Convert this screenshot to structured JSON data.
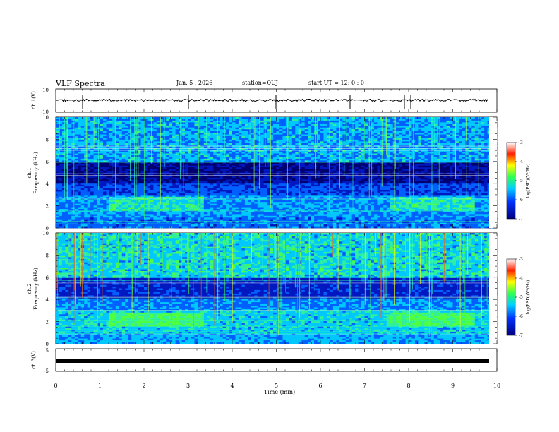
{
  "chart_data": {
    "type": "heatmap",
    "title": "VLF Spectra",
    "date": "Jan. 5 , 2026",
    "station": "station=OUJ",
    "start_ut": "start UT =  12: 0  : 0",
    "xlabel": "Time (min)",
    "x_ticks": [
      "0",
      "1",
      "2",
      "3",
      "4",
      "5",
      "6",
      "7",
      "8",
      "9",
      "10"
    ],
    "xlim": [
      0,
      10
    ],
    "panels": [
      {
        "id": "ch1-waveform",
        "ylabel": "ch.1(V)",
        "y_ticks": [
          "10",
          "-10"
        ],
        "ylim": [
          -10,
          10
        ]
      },
      {
        "id": "ch1-spectrogram",
        "ylabel_lines": [
          "ch.1",
          "Frequency (kHz)"
        ],
        "y_ticks": [
          "10",
          "8",
          "6",
          "4",
          "2",
          "0"
        ],
        "ylim": [
          0,
          10
        ],
        "colorbar": {
          "label": "log(PSD)(V²/Hz)",
          "ticks": [
            "-3",
            "-4",
            "-5",
            "-6",
            "-7"
          ],
          "range": [
            -7,
            -3
          ]
        }
      },
      {
        "id": "ch2-spectrogram",
        "ylabel_lines": [
          "ch.2",
          "Frequency (kHz)"
        ],
        "y_ticks": [
          "10",
          "8",
          "6",
          "4",
          "2",
          "0"
        ],
        "ylim": [
          0,
          10
        ],
        "colorbar": {
          "label": "log(PSD)(V²/Hz)",
          "ticks": [
            "-3",
            "-4",
            "-5",
            "-6",
            "-7"
          ],
          "range": [
            -7,
            -3
          ]
        }
      },
      {
        "id": "ch3-waveform",
        "ylabel": "ch.3(V)",
        "y_ticks": [
          "5",
          "-5"
        ],
        "ylim": [
          -5,
          5
        ]
      }
    ]
  },
  "colors": {
    "c_low": "#00007a",
    "c_mid": "#00c8ff",
    "c_green": "#40ff40",
    "c_yellow": "#ffff00",
    "c_high": "#ff0000"
  }
}
